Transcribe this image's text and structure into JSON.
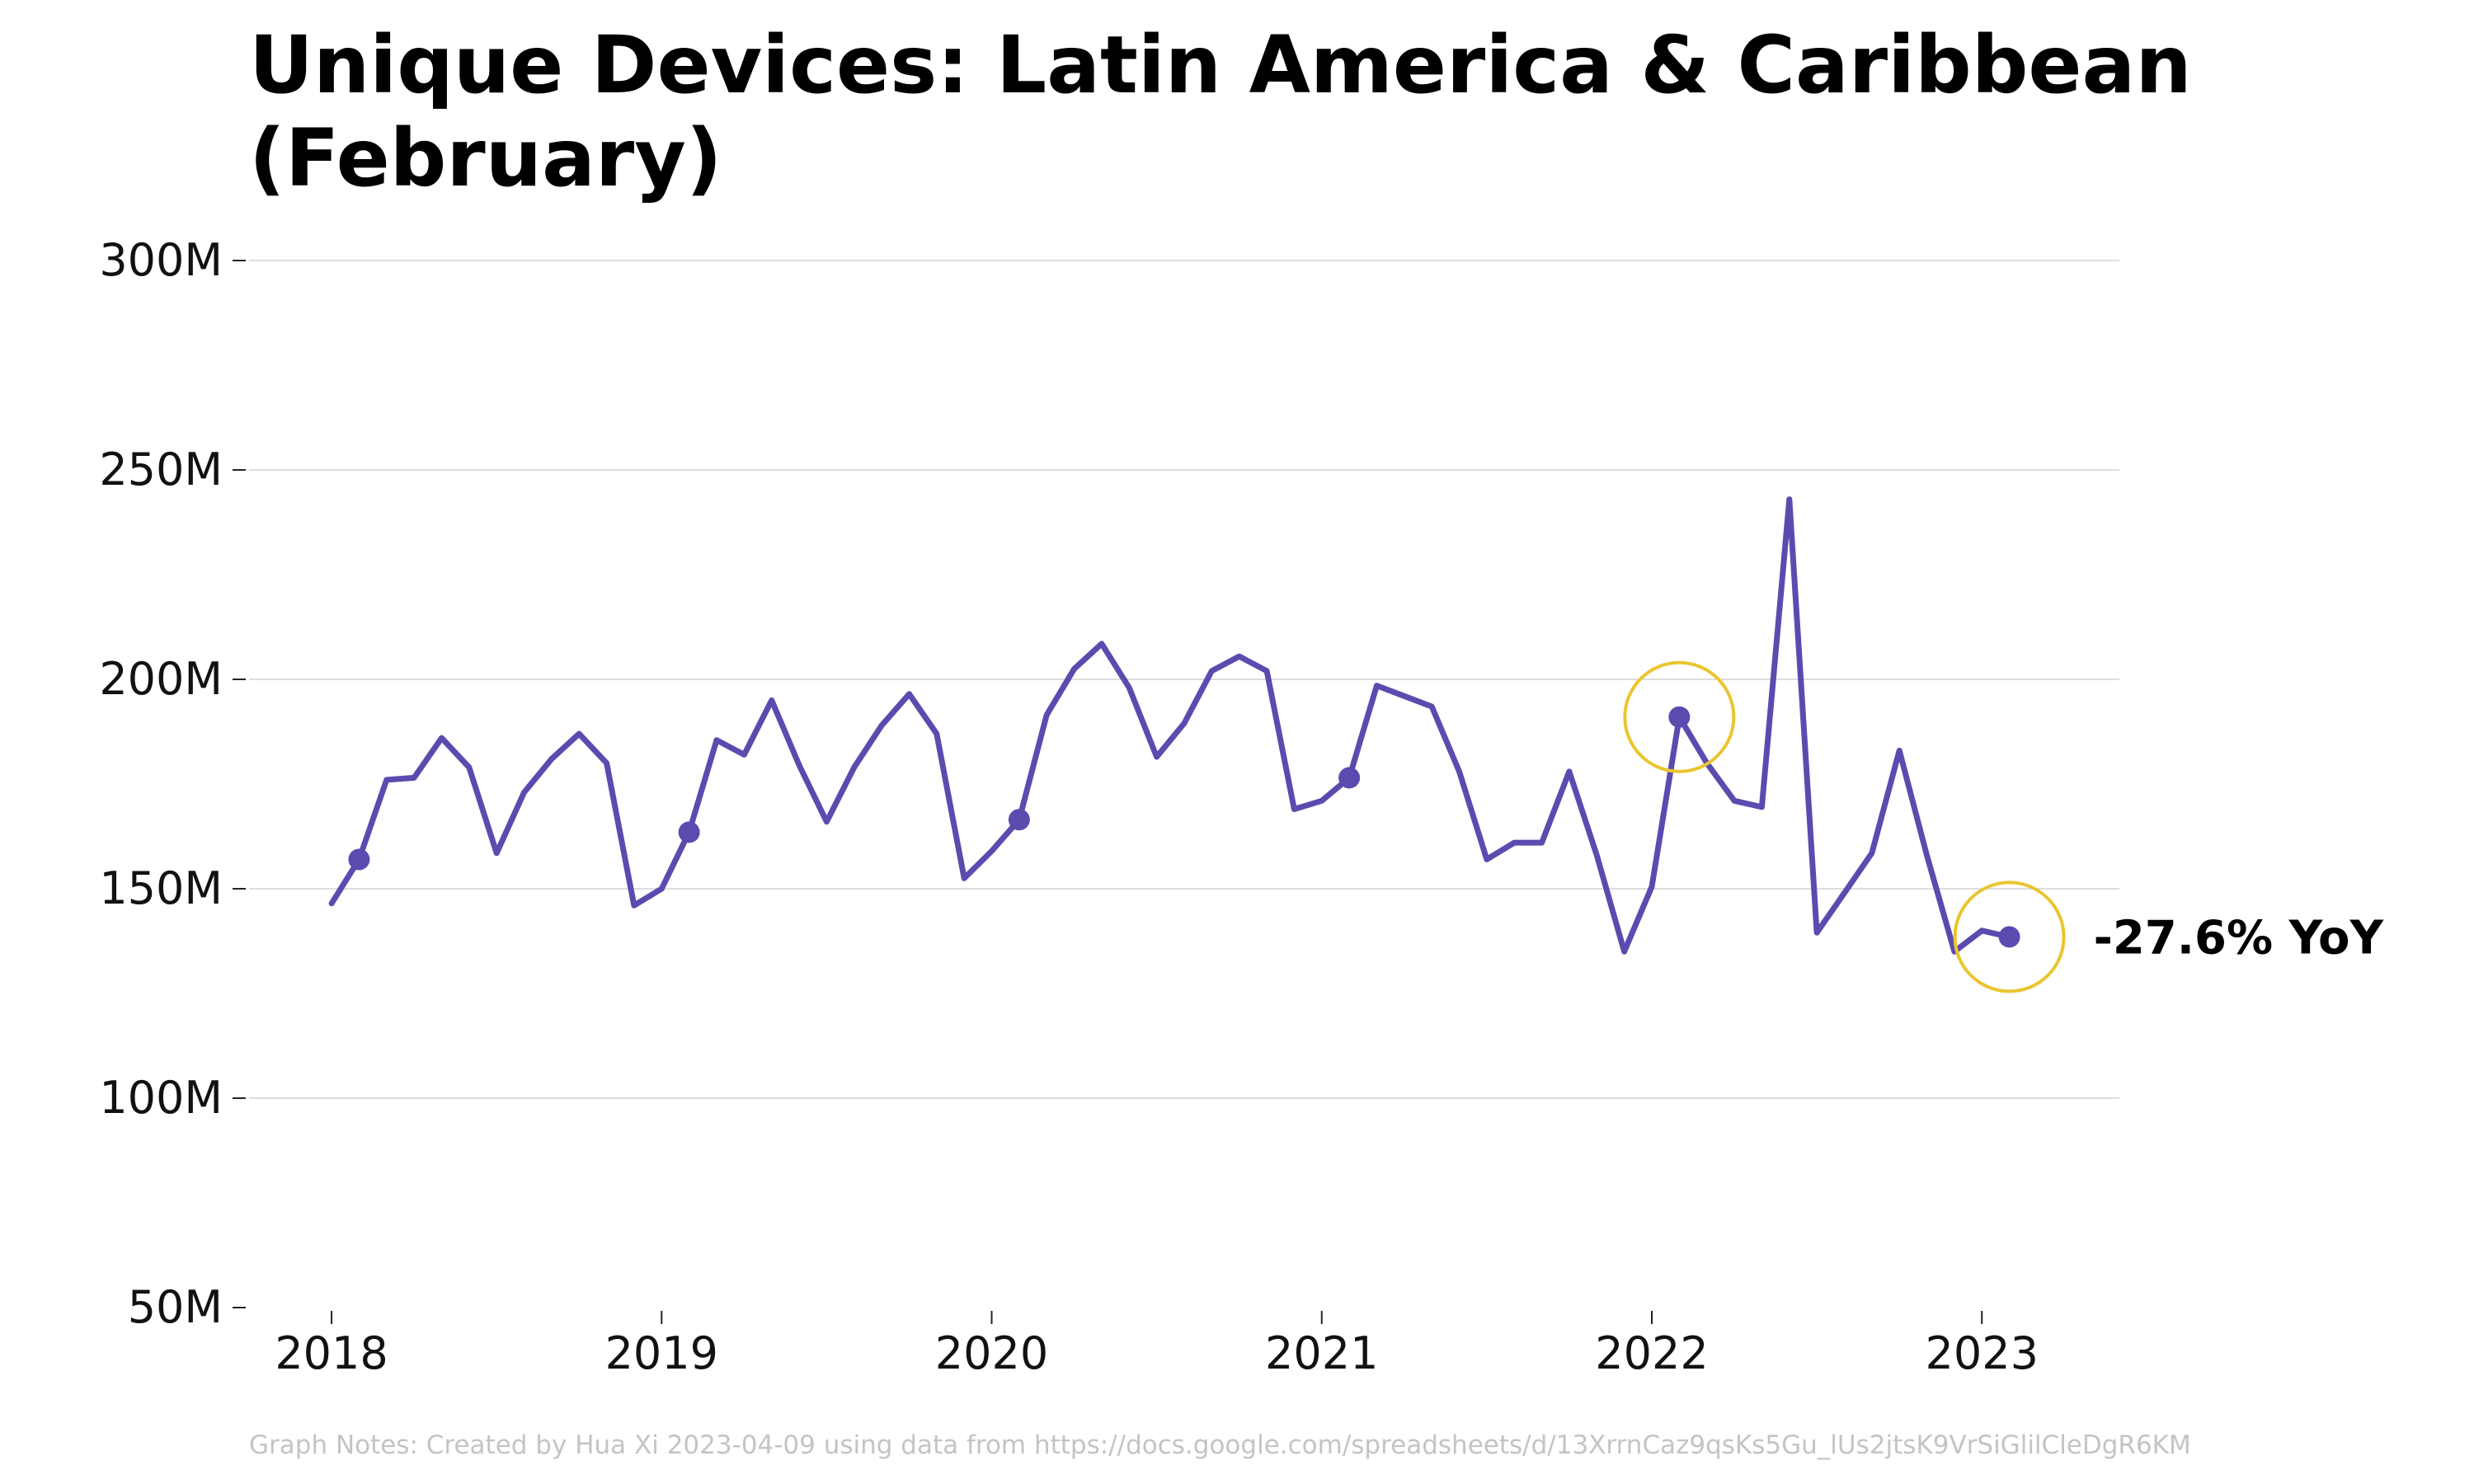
{
  "chart_data": {
    "type": "line",
    "title": "Unique Devices: Latin America & Caribbean (February)",
    "title_lines": [
      "Unique Devices: Latin America & Caribbean",
      "(February)"
    ],
    "xlabel": "",
    "ylabel": "",
    "ylim": [
      50000000,
      300000000
    ],
    "xlim": [
      "2017-10",
      "2023-06"
    ],
    "y_ticks": [
      50000000,
      100000000,
      150000000,
      200000000,
      250000000,
      300000000
    ],
    "y_tick_labels": [
      "50M",
      "100M",
      "150M",
      "200M",
      "250M",
      "300M"
    ],
    "x_ticks": [
      "2018-01",
      "2019-01",
      "2020-01",
      "2021-01",
      "2022-01",
      "2023-01"
    ],
    "x_tick_labels": [
      "2018",
      "2019",
      "2020",
      "2021",
      "2022",
      "2023"
    ],
    "grid": "horizontal",
    "legend": "none",
    "line_color": "#5b4baf",
    "highlight_color": "#e9c530",
    "series": [
      {
        "x": [
          "2018-01",
          "2018-02",
          "2018-03",
          "2018-04",
          "2018-05",
          "2018-06",
          "2018-07",
          "2018-08",
          "2018-09",
          "2018-10",
          "2018-11",
          "2018-12",
          "2019-01",
          "2019-02",
          "2019-03",
          "2019-04",
          "2019-05",
          "2019-06",
          "2019-07",
          "2019-08",
          "2019-09",
          "2019-10",
          "2019-11",
          "2019-12",
          "2020-01",
          "2020-02",
          "2020-03",
          "2020-04",
          "2020-05",
          "2020-06",
          "2020-07",
          "2020-08",
          "2020-09",
          "2020-10",
          "2020-11",
          "2020-12",
          "2021-01",
          "2021-02",
          "2021-03",
          "2021-04",
          "2021-05",
          "2021-06",
          "2021-07",
          "2021-08",
          "2021-09",
          "2021-10",
          "2021-11",
          "2021-12",
          "2022-01",
          "2022-02",
          "2022-03",
          "2022-04",
          "2022-05",
          "2022-06",
          "2022-07",
          "2022-08",
          "2022-09",
          "2022-10",
          "2022-11",
          "2022-12",
          "2023-01",
          "2023-02"
        ],
        "values": [
          146500000,
          157000000,
          176000000,
          176500000,
          186000000,
          179000000,
          158500000,
          173000000,
          181000000,
          187000000,
          180000000,
          146000000,
          150000000,
          163500000,
          185500000,
          182000000,
          195000000,
          179500000,
          166000000,
          179000000,
          189000000,
          196500000,
          187000000,
          152500000,
          159000000,
          166500000,
          191500000,
          202500000,
          208500000,
          198000000,
          181500000,
          189500000,
          202000000,
          205500000,
          202000000,
          169000000,
          171000000,
          176500000,
          198500000,
          196000000,
          193500000,
          178000000,
          157000000,
          161000000,
          161000000,
          178000000,
          158000000,
          135000000,
          150500000,
          191000000,
          180000000,
          171000000,
          169500000,
          243000000,
          139500000,
          149000000,
          158500000,
          183000000,
          158000000,
          135000000,
          140000000,
          138500000
        ]
      }
    ],
    "february_markers": [
      "2018-02",
      "2019-02",
      "2020-02",
      "2021-02",
      "2022-02",
      "2023-02"
    ],
    "highlighted_points": [
      "2022-02",
      "2023-02"
    ],
    "annotation": {
      "text": "-27.6% YoY",
      "at": "2023-02"
    },
    "footnote": "Graph Notes: Created by Hua Xi 2023-04-09 using data from https://docs.google.com/spreadsheets/d/13XrrnCaz9qsKs5Gu_lUs2jtsK9VrSiGlilCleDgR6KM"
  }
}
